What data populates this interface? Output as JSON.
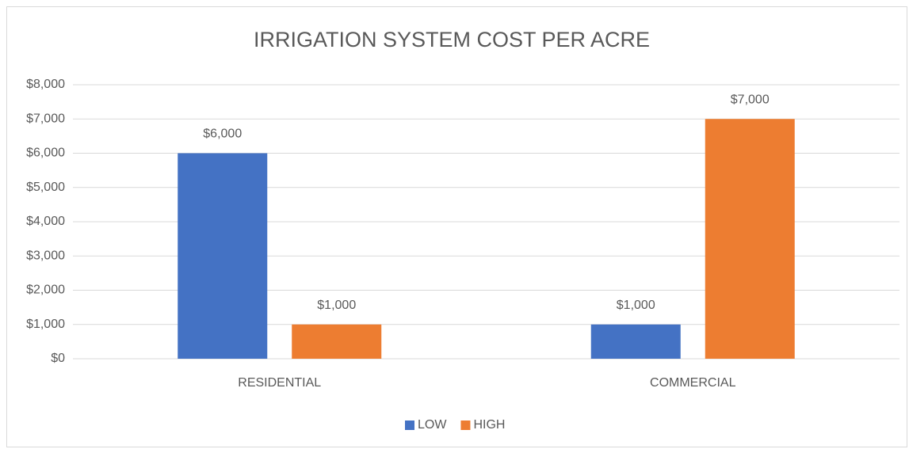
{
  "chart_data": {
    "type": "bar",
    "title": "IRRIGATION SYSTEM COST PER ACRE",
    "categories": [
      "RESIDENTIAL",
      "COMMERCIAL"
    ],
    "series": [
      {
        "name": "LOW",
        "color": "#4472c4",
        "values": [
          6000,
          1000
        ],
        "value_labels": [
          "$6,000",
          "$1,000"
        ]
      },
      {
        "name": "HIGH",
        "color": "#ed7d31",
        "values": [
          1000,
          7000
        ],
        "value_labels": [
          "$1,000",
          "$7,000"
        ]
      }
    ],
    "ylim": [
      0,
      8000
    ],
    "yticks": [
      {
        "value": 0,
        "label": "$0"
      },
      {
        "value": 1000,
        "label": "$1,000"
      },
      {
        "value": 2000,
        "label": "$2,000"
      },
      {
        "value": 3000,
        "label": "$3,000"
      },
      {
        "value": 4000,
        "label": "$4,000"
      },
      {
        "value": 5000,
        "label": "$5,000"
      },
      {
        "value": 6000,
        "label": "$6,000"
      },
      {
        "value": 7000,
        "label": "$7,000"
      },
      {
        "value": 8000,
        "label": "$8,000"
      }
    ],
    "grid": true,
    "legend": "bottom"
  }
}
